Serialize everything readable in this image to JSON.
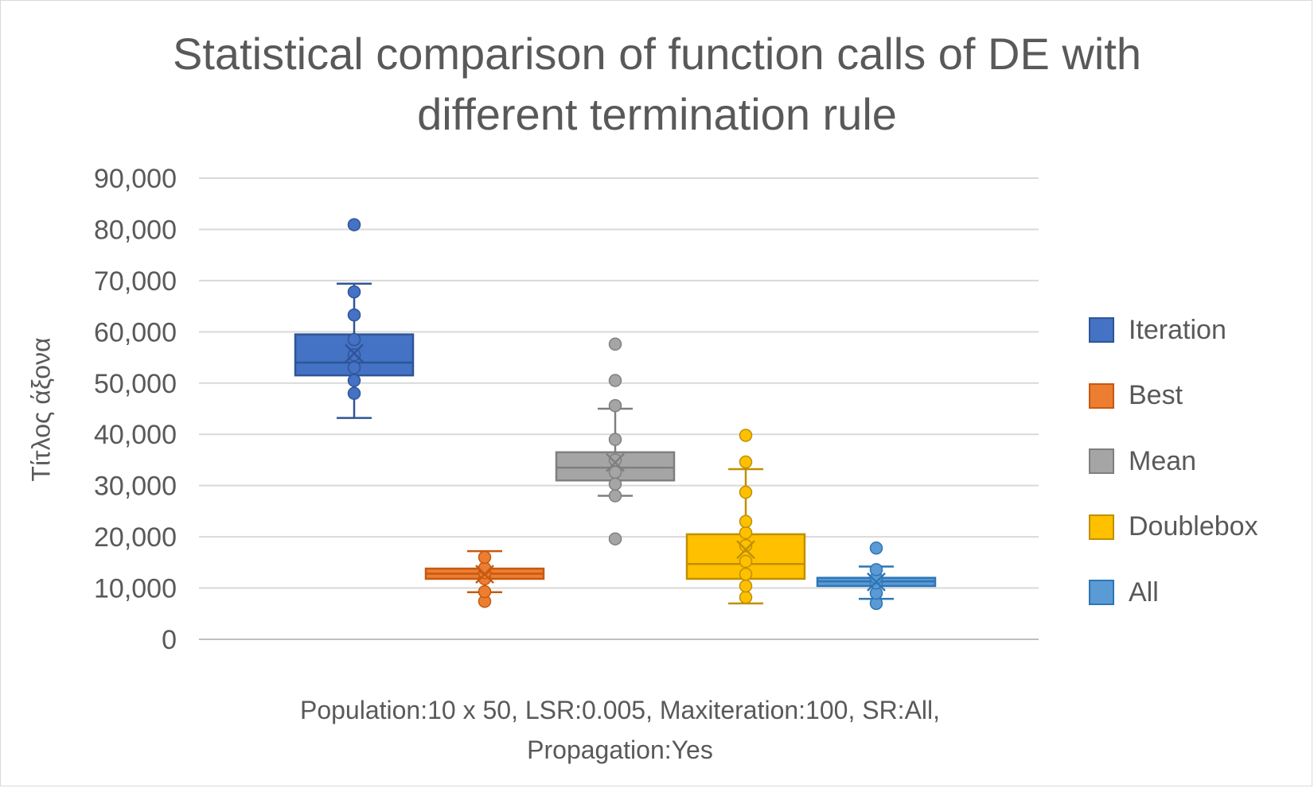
{
  "chart_data": {
    "type": "box",
    "title": [
      "Statistical comparison of function calls of DE with",
      "different termination rule"
    ],
    "ylabel": "Τίτλος άξονα",
    "xlabel": [
      "Population:10 x 50, LSR:0.005, Maxiteration:100, SR:All,",
      "Propagation:Yes"
    ],
    "ylim": [
      0,
      90000
    ],
    "yticks": [
      0,
      10000,
      20000,
      30000,
      40000,
      50000,
      60000,
      70000,
      80000,
      90000
    ],
    "ytick_labels": [
      "0",
      "10,000",
      "20,000",
      "30,000",
      "40,000",
      "50,000",
      "60,000",
      "70,000",
      "80,000",
      "90,000"
    ],
    "grid": true,
    "legend_position": "right",
    "series": [
      {
        "name": "Iteration",
        "color": "#4472c4",
        "edge": "#2f5597",
        "whisker_low": 43200,
        "q1": 51500,
        "median": 54000,
        "q3": 59500,
        "whisker_high": 69400,
        "mean": 55800,
        "points": [
          48000,
          50500,
          53000,
          55500,
          58500,
          63300,
          67800,
          80900
        ]
      },
      {
        "name": "Best",
        "color": "#ed7d31",
        "edge": "#c55a11",
        "whisker_low": 9200,
        "q1": 11800,
        "median": 12800,
        "q3": 13800,
        "whisker_high": 17200,
        "mean": 12700,
        "points": [
          7400,
          9300,
          11800,
          13000,
          13900,
          16000
        ]
      },
      {
        "name": "Mean",
        "color": "#a5a5a5",
        "edge": "#7f7f7f",
        "whisker_low": 28000,
        "q1": 31000,
        "median": 33500,
        "q3": 36500,
        "whisker_high": 45000,
        "mean": 34500,
        "points": [
          19600,
          28000,
          30300,
          32600,
          35000,
          39000,
          45600,
          50500,
          57600
        ]
      },
      {
        "name": "Doublebox",
        "color": "#ffc000",
        "edge": "#bf9000",
        "whisker_low": 7000,
        "q1": 11800,
        "median": 14700,
        "q3": 20500,
        "whisker_high": 33200,
        "mean": 17500,
        "points": [
          8200,
          10400,
          12700,
          15200,
          18300,
          20800,
          23000,
          28700,
          34600,
          39800
        ]
      },
      {
        "name": "All",
        "color": "#5b9bd5",
        "edge": "#2e75b6",
        "whisker_low": 7900,
        "q1": 10400,
        "median": 11300,
        "q3": 12000,
        "whisker_high": 14200,
        "mean": 11200,
        "points": [
          7000,
          9000,
          11000,
          12000,
          13600,
          17800
        ]
      }
    ]
  }
}
